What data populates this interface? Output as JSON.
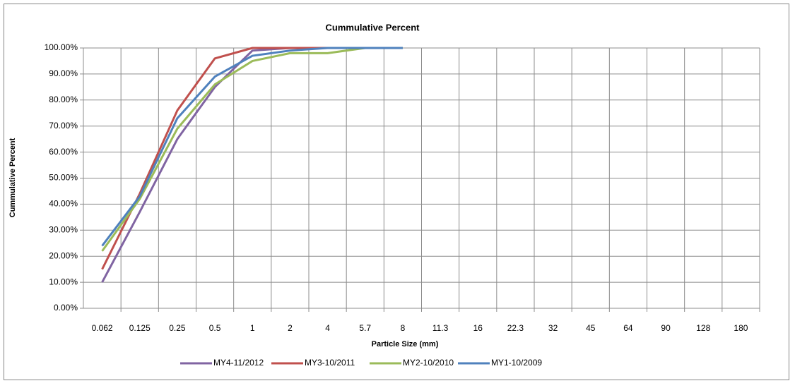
{
  "chart_data": {
    "type": "line",
    "title": "Cummulative Percent",
    "x_label": "Particle Size (mm)",
    "y_label": "Cummulative Percent",
    "categories": [
      "0.062",
      "0.125",
      "0.25",
      "0.5",
      "1",
      "2",
      "4",
      "5.7",
      "8",
      "11.3",
      "16",
      "22.3",
      "32",
      "45",
      "64",
      "90",
      "128",
      "180"
    ],
    "series": [
      {
        "name": "MY4-11/2012",
        "color": "#8064a2",
        "values": [
          10,
          37,
          65,
          85,
          99,
          100,
          100,
          100,
          100,
          null,
          null,
          null,
          null,
          null,
          null,
          null,
          null,
          null
        ]
      },
      {
        "name": "MY3-10/2011",
        "color": "#c0504d",
        "values": [
          15,
          44,
          76,
          96,
          100,
          100,
          100,
          100,
          100,
          null,
          null,
          null,
          null,
          null,
          null,
          null,
          null,
          null
        ]
      },
      {
        "name": "MY2-10/2010",
        "color": "#9bbb59",
        "values": [
          22,
          42,
          69,
          86,
          95,
          98,
          98,
          100,
          100,
          null,
          null,
          null,
          null,
          null,
          null,
          null,
          null,
          null
        ]
      },
      {
        "name": "MY1-10/2009",
        "color": "#4f81bd",
        "values": [
          24,
          43,
          73,
          89,
          97,
          99,
          100,
          100,
          100,
          null,
          null,
          null,
          null,
          null,
          null,
          null,
          null,
          null
        ]
      }
    ],
    "ylim": [
      0,
      100
    ],
    "yticks": [
      {
        "value": 0,
        "label": "0.00%"
      },
      {
        "value": 10,
        "label": "10.00%"
      },
      {
        "value": 20,
        "label": "20.00%"
      },
      {
        "value": 30,
        "label": "30.00%"
      },
      {
        "value": 40,
        "label": "40.00%"
      },
      {
        "value": 50,
        "label": "50.00%"
      },
      {
        "value": 60,
        "label": "60.00%"
      },
      {
        "value": 70,
        "label": "70.00%"
      },
      {
        "value": 80,
        "label": "80.00%"
      },
      {
        "value": 90,
        "label": "90.00%"
      },
      {
        "value": 100,
        "label": "100.00%"
      }
    ],
    "grid": true,
    "legend": "bottom"
  }
}
